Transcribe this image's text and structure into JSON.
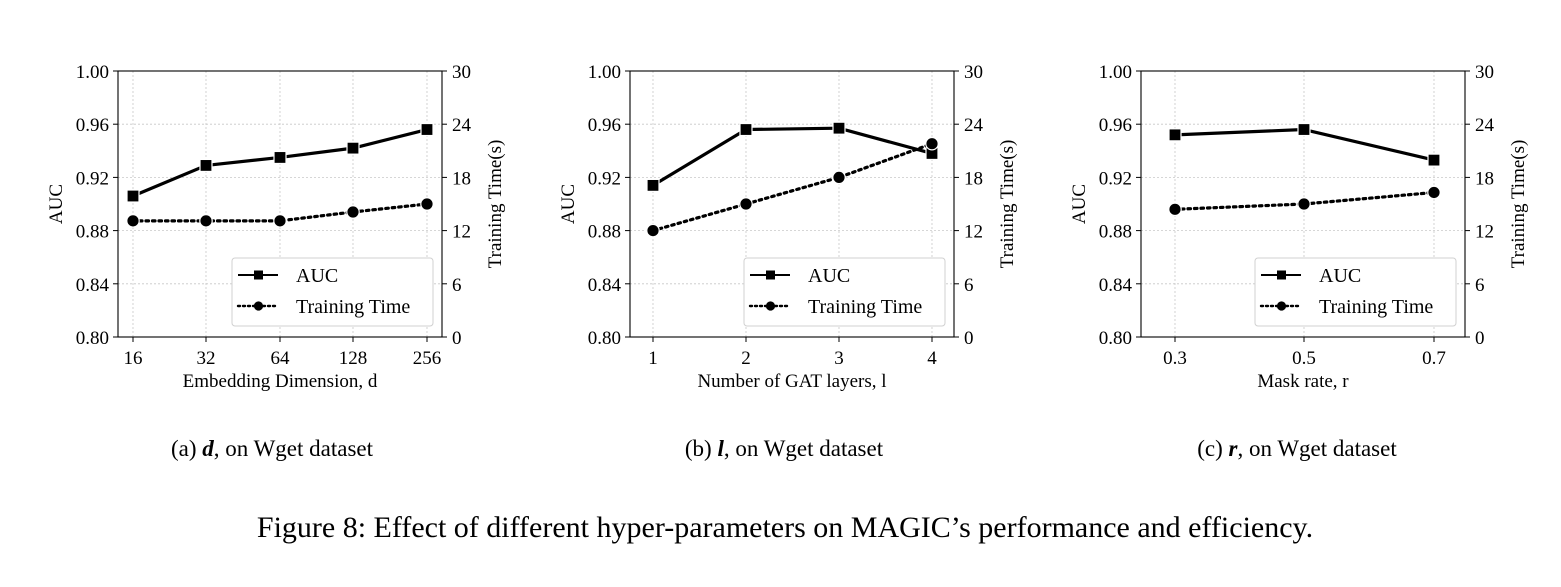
{
  "figure_caption": "Figure 8: Effect of different hyper-parameters on MAGIC’s performance and efficiency.",
  "chart_data": [
    {
      "type": "line",
      "sub_label": "(a)",
      "caption_symbol": "d",
      "caption_rest": ", on Wget dataset",
      "xlabel": "Embedding Dimension, d",
      "ylabel": "AUC",
      "y2label": "Training Time(s)",
      "categories": [
        "16",
        "32",
        "64",
        "128",
        "256"
      ],
      "ylim": [
        0.8,
        1.0
      ],
      "yticks": [
        "1.00",
        "0.96",
        "0.92",
        "0.88",
        "0.84",
        "0.80"
      ],
      "y2lim": [
        0,
        30
      ],
      "y2ticks": [
        "30",
        "24",
        "18",
        "12",
        "6",
        "0"
      ],
      "grid": true,
      "legend_position": "lower-right",
      "series": [
        {
          "name": "AUC",
          "axis": "left",
          "style": "solid",
          "marker": "square",
          "values": [
            0.906,
            0.929,
            0.935,
            0.942,
            0.956
          ]
        },
        {
          "name": "Training Time",
          "axis": "right",
          "style": "dotted",
          "marker": "circle",
          "values": [
            13.1,
            13.1,
            13.1,
            14.1,
            15.0
          ]
        }
      ]
    },
    {
      "type": "line",
      "sub_label": "(b)",
      "caption_symbol": "l",
      "caption_rest": ", on Wget dataset",
      "xlabel": "Number of GAT layers, l",
      "ylabel": "AUC",
      "y2label": "Training Time(s)",
      "categories": [
        "1",
        "2",
        "3",
        "4"
      ],
      "ylim": [
        0.8,
        1.0
      ],
      "yticks": [
        "1.00",
        "0.96",
        "0.92",
        "0.88",
        "0.84",
        "0.80"
      ],
      "y2lim": [
        0,
        30
      ],
      "y2ticks": [
        "30",
        "24",
        "18",
        "12",
        "6",
        "0"
      ],
      "grid": true,
      "legend_position": "lower-right",
      "series": [
        {
          "name": "AUC",
          "axis": "left",
          "style": "solid",
          "marker": "square",
          "values": [
            0.914,
            0.956,
            0.957,
            0.938
          ]
        },
        {
          "name": "Training Time",
          "axis": "right",
          "style": "dotted",
          "marker": "circle",
          "values": [
            12.0,
            15.0,
            18.0,
            21.8
          ]
        }
      ]
    },
    {
      "type": "line",
      "sub_label": "(c)",
      "caption_symbol": "r",
      "caption_rest": ", on Wget dataset",
      "xlabel": "Mask rate, r",
      "ylabel": "AUC",
      "y2label": "Training Time(s)",
      "categories": [
        "0.3",
        "0.5",
        "0.7"
      ],
      "ylim": [
        0.8,
        1.0
      ],
      "yticks": [
        "1.00",
        "0.96",
        "0.92",
        "0.88",
        "0.84",
        "0.80"
      ],
      "y2lim": [
        0,
        30
      ],
      "y2ticks": [
        "30",
        "24",
        "18",
        "12",
        "6",
        "0"
      ],
      "grid": true,
      "legend_position": "lower-right",
      "series": [
        {
          "name": "AUC",
          "axis": "left",
          "style": "solid",
          "marker": "square",
          "values": [
            0.952,
            0.956,
            0.933
          ]
        },
        {
          "name": "Training Time",
          "axis": "right",
          "style": "dotted",
          "marker": "circle",
          "values": [
            14.4,
            15.0,
            16.3
          ]
        }
      ]
    }
  ]
}
